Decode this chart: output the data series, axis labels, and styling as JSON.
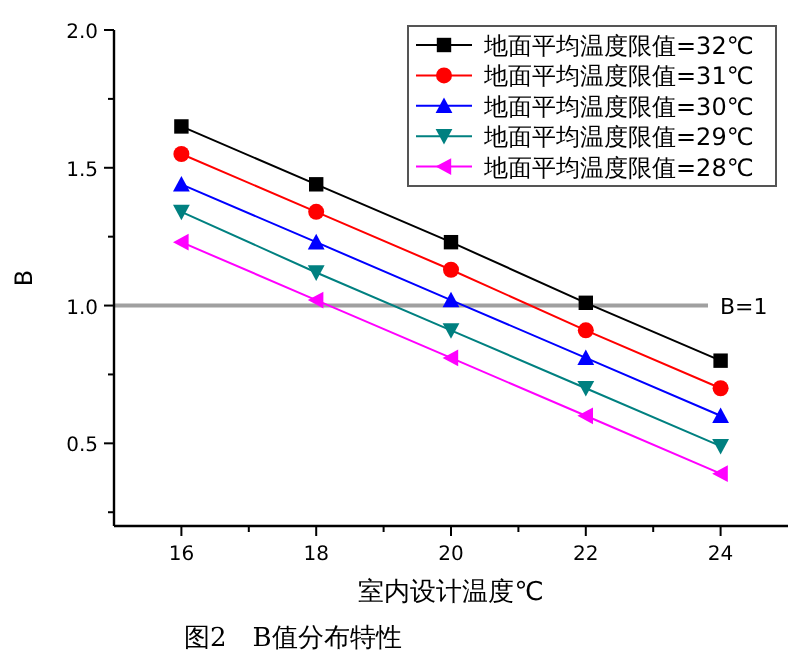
{
  "chart_data": {
    "type": "line",
    "xlabel": "室内设计温度℃",
    "ylabel": "B",
    "annotations": [
      "图2　B值分布特性"
    ],
    "x": [
      16,
      18,
      20,
      22,
      24
    ],
    "xlim": [
      15,
      25
    ],
    "ylim": [
      0.2,
      2.0
    ],
    "xticks": [
      16,
      {
        "value": 17,
        "label": null
      },
      18,
      {
        "value": 19,
        "label": null
      },
      20,
      {
        "value": 21,
        "label": null
      },
      22,
      {
        "value": 23,
        "label": null
      },
      24
    ],
    "yticks": [
      {
        "value": 0.25,
        "label": null
      },
      0.5,
      {
        "value": 0.75,
        "label": null
      },
      {
        "value": 1.0,
        "label": "1.0"
      },
      {
        "value": 1.25,
        "label": null
      },
      1.5,
      {
        "value": 1.75,
        "label": null
      },
      {
        "value": 2.0,
        "label": "2.0"
      }
    ],
    "series": [
      {
        "name": "地面平均温度限值=32℃",
        "color": "#000000",
        "marker": "square",
        "values": [
          1.65,
          1.44,
          1.23,
          1.01,
          0.8
        ]
      },
      {
        "name": "地面平均温度限值=31℃",
        "color": "#ff0000",
        "marker": "circle",
        "values": [
          1.55,
          1.34,
          1.13,
          0.91,
          0.7
        ]
      },
      {
        "name": "地面平均温度限值=30℃",
        "color": "#0000ff",
        "marker": "triangle",
        "values": [
          1.44,
          1.23,
          1.02,
          0.81,
          0.6
        ]
      },
      {
        "name": "地面平均温度限值=29℃",
        "color": "#008080",
        "marker": "triangle-down",
        "values": [
          1.34,
          1.12,
          0.91,
          0.7,
          0.49
        ]
      },
      {
        "name": "地面平均温度限值=28℃",
        "color": "#ff00ff",
        "marker": "triangle-left",
        "values": [
          1.23,
          1.02,
          0.81,
          0.6,
          0.39
        ]
      }
    ],
    "ref_lines": [
      {
        "axis": "y",
        "value": 1.0,
        "label": "B=1",
        "color": "#a0a0a0"
      }
    ],
    "legend": "top right",
    "line_style": "solid",
    "grid": false
  }
}
